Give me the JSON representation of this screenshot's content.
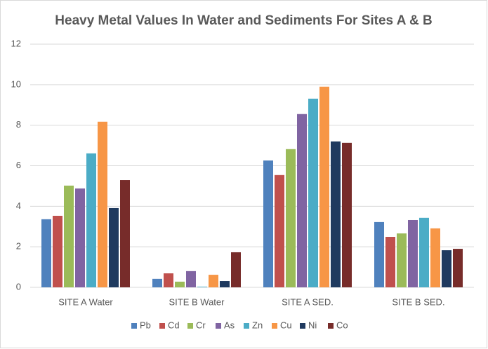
{
  "chart_data": {
    "type": "bar",
    "title": "Heavy Metal Values In Water and Sediments For Sites A & B",
    "categories": [
      "SITE A Water",
      "SITE B Water",
      "SITE A SED.",
      "SITE B SED."
    ],
    "series": [
      {
        "name": "Pb",
        "color": "#4f81bd",
        "values": [
          3.36,
          0.42,
          6.26,
          3.22
        ]
      },
      {
        "name": "Cd",
        "color": "#c0504d",
        "values": [
          3.53,
          0.69,
          5.54,
          2.49
        ]
      },
      {
        "name": "Cr",
        "color": "#9bbb59",
        "values": [
          5.02,
          0.28,
          6.82,
          2.66
        ]
      },
      {
        "name": "As",
        "color": "#8064a2",
        "values": [
          4.88,
          0.8,
          8.55,
          3.32
        ]
      },
      {
        "name": "Zn",
        "color": "#4bacc6",
        "values": [
          6.61,
          0.03,
          9.31,
          3.43
        ]
      },
      {
        "name": "Cu",
        "color": "#f79646",
        "values": [
          8.17,
          0.62,
          9.9,
          2.91
        ]
      },
      {
        "name": "Ni",
        "color": "#1f3a5f",
        "values": [
          3.91,
          0.31,
          7.2,
          1.83
        ]
      },
      {
        "name": "Co",
        "color": "#772c2a",
        "values": [
          5.29,
          1.73,
          7.13,
          1.9
        ]
      }
    ],
    "ylim": [
      0,
      12
    ],
    "yticks": [
      0,
      2,
      4,
      6,
      8,
      10,
      12
    ],
    "grid": true,
    "legend": "bottom"
  }
}
